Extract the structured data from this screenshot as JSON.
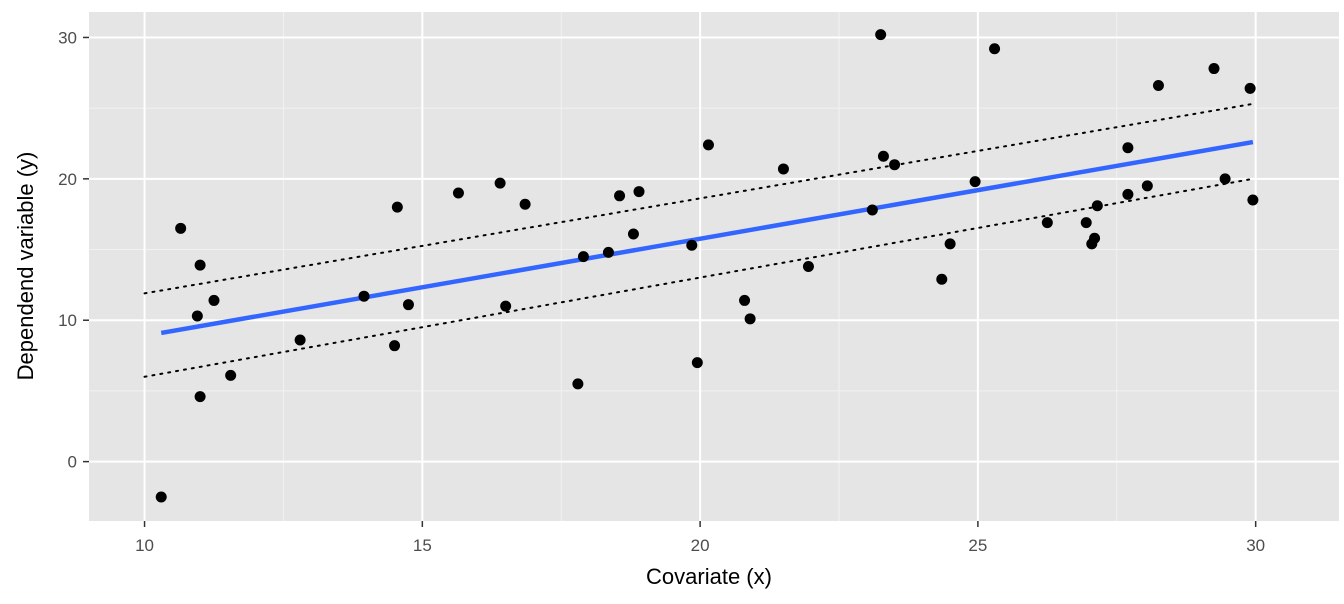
{
  "chart_data": {
    "type": "scatter",
    "title": "",
    "xlabel": "Covariate (x)",
    "ylabel": "Dependend variable (y)",
    "xlim": [
      9,
      31.5
    ],
    "ylim": [
      -4.2,
      31.8
    ],
    "xticks": [
      10,
      15,
      20,
      25,
      30
    ],
    "yticks": [
      0,
      10,
      20,
      30
    ],
    "grid": true,
    "background": "#e5e5e5",
    "point_color": "#000000",
    "fit_color": "#3366ff",
    "band_color": "#000000",
    "points": [
      [
        10.3,
        -2.5
      ],
      [
        10.65,
        16.5
      ],
      [
        10.95,
        10.3
      ],
      [
        11.0,
        13.9
      ],
      [
        11.0,
        4.6
      ],
      [
        11.25,
        11.4
      ],
      [
        11.55,
        6.1
      ],
      [
        12.8,
        8.6
      ],
      [
        13.95,
        11.7
      ],
      [
        14.5,
        8.2
      ],
      [
        14.55,
        18.0
      ],
      [
        14.75,
        11.1
      ],
      [
        15.65,
        19.0
      ],
      [
        16.4,
        19.7
      ],
      [
        16.5,
        11.0
      ],
      [
        16.85,
        18.2
      ],
      [
        17.8,
        5.5
      ],
      [
        17.9,
        14.5
      ],
      [
        18.35,
        14.8
      ],
      [
        18.55,
        18.8
      ],
      [
        18.8,
        16.1
      ],
      [
        18.9,
        19.1
      ],
      [
        19.85,
        15.3
      ],
      [
        19.95,
        7.0
      ],
      [
        20.15,
        22.4
      ],
      [
        20.8,
        11.4
      ],
      [
        20.9,
        10.1
      ],
      [
        21.5,
        20.7
      ],
      [
        21.95,
        13.8
      ],
      [
        23.1,
        17.8
      ],
      [
        23.25,
        30.2
      ],
      [
        23.3,
        21.6
      ],
      [
        23.5,
        21.0
      ],
      [
        24.35,
        12.9
      ],
      [
        24.5,
        15.4
      ],
      [
        24.95,
        19.8
      ],
      [
        25.3,
        29.2
      ],
      [
        26.25,
        16.9
      ],
      [
        26.95,
        16.9
      ],
      [
        27.05,
        15.4
      ],
      [
        27.1,
        15.8
      ],
      [
        27.15,
        18.1
      ],
      [
        27.7,
        22.2
      ],
      [
        27.7,
        18.9
      ],
      [
        28.05,
        19.5
      ],
      [
        28.25,
        26.6
      ],
      [
        29.25,
        27.8
      ],
      [
        29.45,
        20.0
      ],
      [
        29.9,
        26.4
      ],
      [
        29.95,
        18.5
      ]
    ],
    "fit_line": {
      "x": [
        10.3,
        29.95
      ],
      "y": [
        9.1,
        22.6
      ]
    },
    "upper_band": {
      "x": [
        10.0,
        29.95
      ],
      "y": [
        11.9,
        25.3
      ]
    },
    "lower_band": {
      "x": [
        10.0,
        29.95
      ],
      "y": [
        6.0,
        20.0
      ]
    }
  }
}
